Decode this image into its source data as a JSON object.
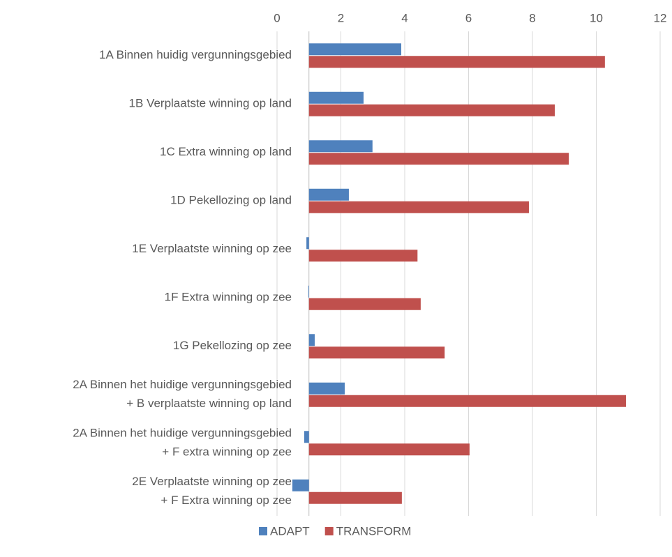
{
  "chart_data": {
    "type": "hbar",
    "categories": [
      [
        "1A Binnen huidig vergunningsgebied"
      ],
      [
        "1B Verplaatste winning op land"
      ],
      [
        "1C Extra winning op land"
      ],
      [
        "1D Pekellozing op land"
      ],
      [
        "1E Verplaatste winning op zee"
      ],
      [
        "1F Extra winning op zee"
      ],
      [
        "1G Pekellozing op zee"
      ],
      [
        "2A Binnen het huidige vergunningsgebied",
        "+ B verplaatste winning op land"
      ],
      [
        "2A Binnen het huidige vergunningsgebied",
        "+ F extra winning op zee"
      ],
      [
        "2E Verplaatste winning op zee",
        "+ F Extra winning op zee"
      ]
    ],
    "series": [
      {
        "name": "ADAPT",
        "color": "#4f81bd",
        "values": [
          3.89,
          2.71,
          2.99,
          2.25,
          0.92,
          0.98,
          1.18,
          2.12,
          0.85,
          0.48
        ]
      },
      {
        "name": "TRANSFORM",
        "color": "#c0504d",
        "values": [
          10.27,
          8.7,
          9.14,
          7.89,
          4.4,
          4.5,
          5.25,
          10.93,
          6.03,
          3.91
        ]
      }
    ],
    "xlim": [
      0,
      12
    ],
    "xticks": [
      0,
      2,
      4,
      6,
      8,
      10,
      12
    ],
    "axis_cross": 1,
    "grid": true,
    "legend": "bottom"
  }
}
